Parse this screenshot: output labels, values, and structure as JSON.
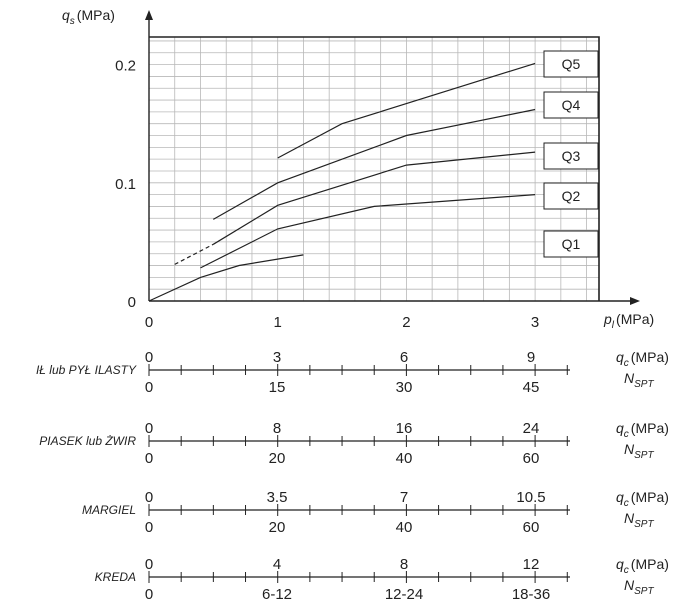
{
  "chart_data": {
    "type": "line",
    "y_axis": {
      "symbol": "q",
      "sub": "s",
      "unit": "(MPa)",
      "ticks": [
        "0",
        "0.1",
        "0.2"
      ],
      "range": [
        0,
        0.22
      ]
    },
    "x_axis": {
      "symbol": "p",
      "sub": "l",
      "unit": "(MPa)",
      "ticks": [
        "0",
        "1",
        "2",
        "3"
      ],
      "range": [
        0,
        3.5
      ]
    },
    "grid": true,
    "series": [
      {
        "name": "Q1",
        "points": [
          [
            0,
            0
          ],
          [
            0.4,
            0.02
          ],
          [
            0.7,
            0.03
          ],
          [
            1.2,
            0.039
          ]
        ]
      },
      {
        "name": "Q2",
        "points": [
          [
            0.4,
            0.028
          ],
          [
            1.0,
            0.061
          ],
          [
            1.75,
            0.08
          ],
          [
            3.0,
            0.09
          ]
        ]
      },
      {
        "name": "Q3",
        "points": [
          [
            0.5,
            0.048
          ],
          [
            1.0,
            0.081
          ],
          [
            2.0,
            0.115
          ],
          [
            3.0,
            0.126
          ]
        ]
      },
      {
        "name": "Q4",
        "points": [
          [
            0.5,
            0.069
          ],
          [
            1.0,
            0.1
          ],
          [
            2.0,
            0.14
          ],
          [
            3.0,
            0.162
          ]
        ]
      },
      {
        "name": "Q5",
        "points": [
          [
            1.0,
            0.121
          ],
          [
            1.5,
            0.15
          ],
          [
            3.0,
            0.201
          ]
        ]
      }
    ],
    "dashed": {
      "series": "Q3",
      "points": [
        [
          0.2,
          0.031
        ],
        [
          0.5,
          0.048
        ]
      ]
    },
    "scales": [
      {
        "soil": "IŁ lub PYŁ ILASTY",
        "qc": [
          "0",
          "3",
          "6",
          "9"
        ],
        "nspt": [
          "0",
          "15",
          "30",
          "45"
        ]
      },
      {
        "soil": "PIASEK lub ŻWIR",
        "qc": [
          "0",
          "8",
          "16",
          "24"
        ],
        "nspt": [
          "0",
          "20",
          "40",
          "60"
        ]
      },
      {
        "soil": "MARGIEL",
        "qc": [
          "0",
          "3.5",
          "7",
          "10.5"
        ],
        "nspt": [
          "0",
          "20",
          "40",
          "60"
        ]
      },
      {
        "soil": "KREDA",
        "qc": [
          "0",
          "4",
          "8",
          "12"
        ],
        "nspt": [
          "0",
          "6-12",
          "12-24",
          "18-36"
        ]
      }
    ],
    "qc_label": {
      "symbol": "q",
      "sub": "c",
      "unit": "(MPa)"
    },
    "nspt_label": {
      "symbol": "N",
      "sub": "SPT"
    }
  }
}
